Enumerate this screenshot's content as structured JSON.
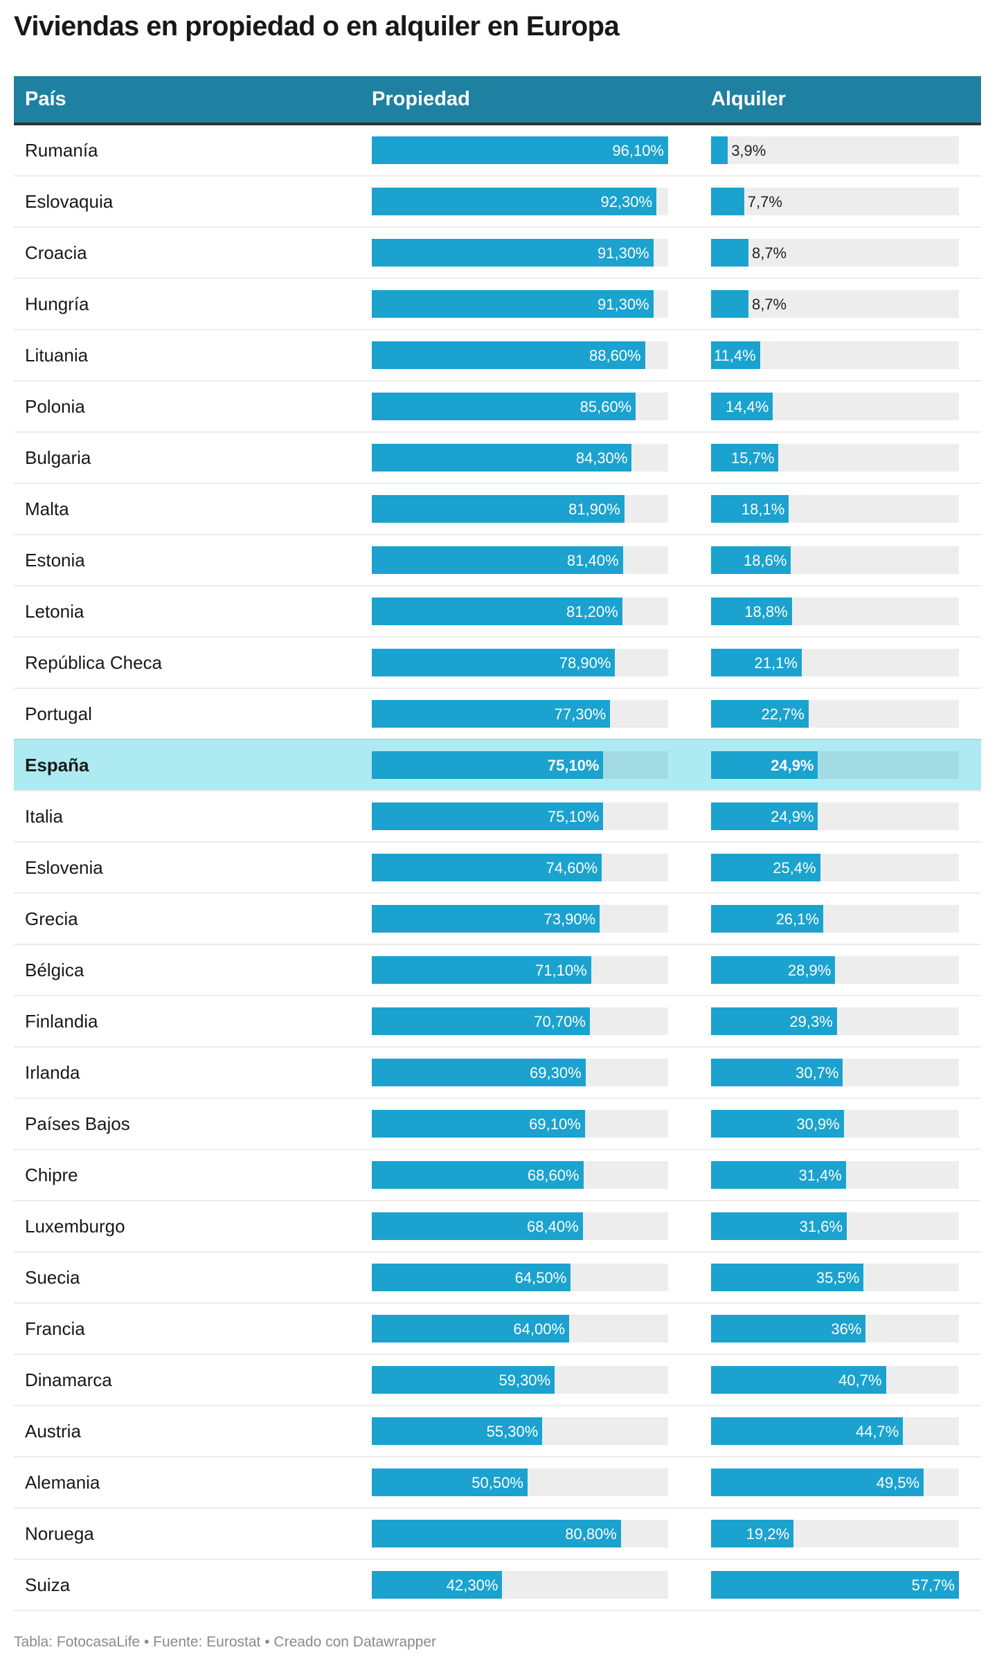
{
  "title": "Viviendas en propiedad o en alquiler en Europa",
  "header": {
    "country": "País",
    "owned": "Propiedad",
    "rented": "Alquiler"
  },
  "footer": "Tabla: FotocasaLife • Fuente: Eurostat • Creado con Datawrapper",
  "colors": {
    "header_bg": "#1f81a1",
    "bar": "#1ba2cf",
    "track": "#ededed",
    "highlight_bg": "#aeeaf1",
    "highlight_track": "#a2dbe4"
  },
  "chart_data": {
    "type": "table",
    "columns": [
      "País",
      "Propiedad",
      "Alquiler"
    ],
    "highlight": "España",
    "rows": [
      {
        "country": "Rumanía",
        "owned": 96.1,
        "owned_label": "96,10%",
        "rented": 3.9,
        "rented_label": "3,9%"
      },
      {
        "country": "Eslovaquia",
        "owned": 92.3,
        "owned_label": "92,30%",
        "rented": 7.7,
        "rented_label": "7,7%"
      },
      {
        "country": "Croacia",
        "owned": 91.3,
        "owned_label": "91,30%",
        "rented": 8.7,
        "rented_label": "8,7%"
      },
      {
        "country": "Hungría",
        "owned": 91.3,
        "owned_label": "91,30%",
        "rented": 8.7,
        "rented_label": "8,7%"
      },
      {
        "country": "Lituania",
        "owned": 88.6,
        "owned_label": "88,60%",
        "rented": 11.4,
        "rented_label": "11,4%"
      },
      {
        "country": "Polonia",
        "owned": 85.6,
        "owned_label": "85,60%",
        "rented": 14.4,
        "rented_label": "14,4%"
      },
      {
        "country": "Bulgaria",
        "owned": 84.3,
        "owned_label": "84,30%",
        "rented": 15.7,
        "rented_label": "15,7%"
      },
      {
        "country": "Malta",
        "owned": 81.9,
        "owned_label": "81,90%",
        "rented": 18.1,
        "rented_label": "18,1%"
      },
      {
        "country": "Estonia",
        "owned": 81.4,
        "owned_label": "81,40%",
        "rented": 18.6,
        "rented_label": "18,6%"
      },
      {
        "country": "Letonia",
        "owned": 81.2,
        "owned_label": "81,20%",
        "rented": 18.8,
        "rented_label": "18,8%"
      },
      {
        "country": "República Checa",
        "owned": 78.9,
        "owned_label": "78,90%",
        "rented": 21.1,
        "rented_label": "21,1%"
      },
      {
        "country": "Portugal",
        "owned": 77.3,
        "owned_label": "77,30%",
        "rented": 22.7,
        "rented_label": "22,7%"
      },
      {
        "country": "España",
        "owned": 75.1,
        "owned_label": "75,10%",
        "rented": 24.9,
        "rented_label": "24,9%"
      },
      {
        "country": "Italia",
        "owned": 75.1,
        "owned_label": "75,10%",
        "rented": 24.9,
        "rented_label": "24,9%"
      },
      {
        "country": "Eslovenia",
        "owned": 74.6,
        "owned_label": "74,60%",
        "rented": 25.4,
        "rented_label": "25,4%"
      },
      {
        "country": "Grecia",
        "owned": 73.9,
        "owned_label": "73,90%",
        "rented": 26.1,
        "rented_label": "26,1%"
      },
      {
        "country": "Bélgica",
        "owned": 71.1,
        "owned_label": "71,10%",
        "rented": 28.9,
        "rented_label": "28,9%"
      },
      {
        "country": "Finlandia",
        "owned": 70.7,
        "owned_label": "70,70%",
        "rented": 29.3,
        "rented_label": "29,3%"
      },
      {
        "country": "Irlanda",
        "owned": 69.3,
        "owned_label": "69,30%",
        "rented": 30.7,
        "rented_label": "30,7%"
      },
      {
        "country": "Países Bajos",
        "owned": 69.1,
        "owned_label": "69,10%",
        "rented": 30.9,
        "rented_label": "30,9%"
      },
      {
        "country": "Chipre",
        "owned": 68.6,
        "owned_label": "68,60%",
        "rented": 31.4,
        "rented_label": "31,4%"
      },
      {
        "country": "Luxemburgo",
        "owned": 68.4,
        "owned_label": "68,40%",
        "rented": 31.6,
        "rented_label": "31,6%"
      },
      {
        "country": "Suecia",
        "owned": 64.5,
        "owned_label": "64,50%",
        "rented": 35.5,
        "rented_label": "35,5%"
      },
      {
        "country": "Francia",
        "owned": 64.0,
        "owned_label": "64,00%",
        "rented": 36,
        "rented_label": "36%"
      },
      {
        "country": "Dinamarca",
        "owned": 59.3,
        "owned_label": "59,30%",
        "rented": 40.7,
        "rented_label": "40,7%"
      },
      {
        "country": "Austria",
        "owned": 55.3,
        "owned_label": "55,30%",
        "rented": 44.7,
        "rented_label": "44,7%"
      },
      {
        "country": "Alemania",
        "owned": 50.5,
        "owned_label": "50,50%",
        "rented": 49.5,
        "rented_label": "49,5%"
      },
      {
        "country": "Noruega",
        "owned": 80.8,
        "owned_label": "80,80%",
        "rented": 19.2,
        "rented_label": "19,2%"
      },
      {
        "country": "Suiza",
        "owned": 42.3,
        "owned_label": "42,30%",
        "rented": 57.7,
        "rented_label": "57,7%"
      }
    ]
  }
}
